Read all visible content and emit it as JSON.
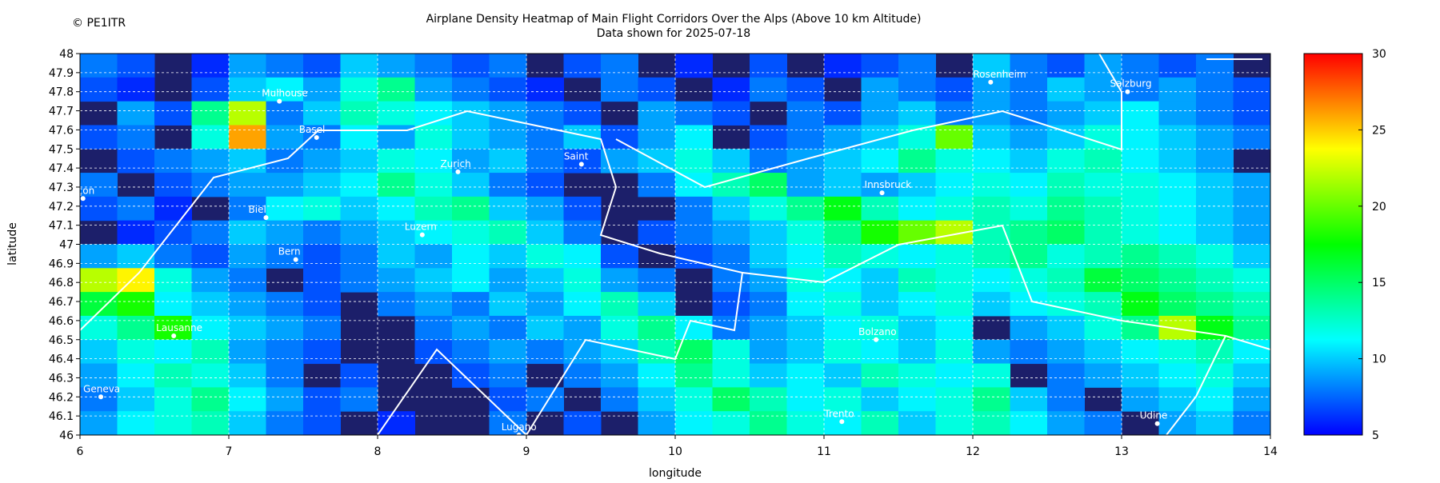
{
  "chart_data": {
    "type": "heatmap",
    "title": "Airplane Density Heatmap of Main Flight Corridors Over the Alps (Above 10 km Altitude)",
    "subtitle": "Data shown for 2025-07-18",
    "credit": "© PE1ITR",
    "x_label": "longitude",
    "y_label": "latitude",
    "xlim": [
      6,
      14
    ],
    "ylim": [
      46,
      48
    ],
    "zlim": [
      5,
      30
    ],
    "xticks": [
      6,
      7,
      8,
      9,
      10,
      11,
      12,
      13,
      14
    ],
    "yticks": [
      46,
      46.1,
      46.2,
      46.3,
      46.4,
      46.5,
      46.6,
      46.7,
      46.8,
      46.9,
      47,
      47.1,
      47.2,
      47.3,
      47.4,
      47.5,
      47.6,
      47.7,
      47.8,
      47.9,
      48
    ],
    "zticks": [
      5,
      10,
      15,
      20,
      25,
      30
    ],
    "grid": true,
    "background_color": "#1c1f6a",
    "colormap": [
      "#0000ff",
      "#00ffff",
      "#00ff00",
      "#ffff00",
      "#ff0000"
    ],
    "z": [
      [
        8,
        7,
        null,
        6,
        9,
        8,
        7,
        10,
        9,
        8,
        7,
        8,
        null,
        7,
        8,
        null,
        6,
        null,
        7,
        null,
        6,
        7,
        8,
        null,
        10,
        8,
        7,
        9,
        8,
        7,
        8,
        null
      ],
      [
        7,
        6,
        null,
        7,
        10,
        11,
        9,
        12,
        14,
        9,
        8,
        7,
        6,
        null,
        8,
        7,
        null,
        6,
        8,
        7,
        null,
        9,
        8,
        7,
        9,
        8,
        10,
        9,
        8,
        9,
        8,
        7
      ],
      [
        null,
        9,
        7,
        14,
        22,
        8,
        10,
        13,
        12,
        11,
        10,
        9,
        8,
        7,
        null,
        9,
        8,
        7,
        null,
        8,
        7,
        9,
        10,
        8,
        9,
        8,
        9,
        10,
        11,
        9,
        8,
        7
      ],
      [
        7,
        8,
        null,
        12,
        26,
        9,
        8,
        11,
        9,
        12,
        10,
        9,
        8,
        10,
        7,
        9,
        11,
        null,
        7,
        8,
        9,
        10,
        12,
        20,
        10,
        9,
        10,
        12,
        11,
        10,
        9,
        8
      ],
      [
        null,
        7,
        8,
        9,
        10,
        8,
        9,
        10,
        12,
        11,
        9,
        10,
        8,
        7,
        9,
        10,
        12,
        10,
        8,
        9,
        10,
        11,
        14,
        12,
        11,
        10,
        12,
        13,
        11,
        10,
        9,
        null
      ],
      [
        8,
        null,
        7,
        8,
        9,
        9,
        10,
        11,
        14,
        12,
        10,
        8,
        7,
        null,
        null,
        8,
        11,
        13,
        15,
        9,
        10,
        9,
        10,
        11,
        12,
        11,
        13,
        12,
        12,
        11,
        10,
        9
      ],
      [
        7,
        8,
        6,
        null,
        8,
        11,
        12,
        10,
        11,
        13,
        14,
        10,
        9,
        7,
        null,
        null,
        8,
        10,
        12,
        14,
        17,
        13,
        11,
        12,
        13,
        12,
        14,
        13,
        12,
        11,
        10,
        9
      ],
      [
        null,
        6,
        7,
        8,
        10,
        9,
        8,
        9,
        10,
        11,
        12,
        13,
        10,
        8,
        null,
        7,
        8,
        9,
        10,
        12,
        14,
        18,
        20,
        22,
        13,
        14,
        15,
        13,
        12,
        11,
        10,
        9
      ],
      [
        9,
        10,
        8,
        7,
        9,
        8,
        7,
        8,
        10,
        9,
        11,
        10,
        12,
        11,
        7,
        null,
        7,
        8,
        10,
        11,
        13,
        12,
        11,
        12,
        13,
        14,
        12,
        13,
        14,
        13,
        12,
        10
      ],
      [
        22,
        24,
        12,
        9,
        8,
        null,
        7,
        8,
        9,
        10,
        11,
        9,
        10,
        12,
        9,
        8,
        null,
        8,
        9,
        12,
        11,
        10,
        13,
        12,
        11,
        12,
        13,
        16,
        15,
        14,
        13,
        12
      ],
      [
        16,
        18,
        11,
        10,
        9,
        8,
        7,
        null,
        8,
        9,
        8,
        10,
        9,
        11,
        13,
        10,
        null,
        7,
        8,
        11,
        12,
        10,
        11,
        12,
        10,
        11,
        12,
        13,
        17,
        15,
        14,
        13
      ],
      [
        12,
        14,
        18,
        11,
        10,
        9,
        8,
        null,
        null,
        8,
        9,
        8,
        10,
        9,
        12,
        14,
        11,
        8,
        9,
        10,
        11,
        12,
        10,
        11,
        null,
        9,
        10,
        12,
        14,
        22,
        17,
        14
      ],
      [
        10,
        12,
        11,
        13,
        9,
        8,
        7,
        null,
        null,
        7,
        8,
        9,
        8,
        9,
        10,
        13,
        15,
        12,
        9,
        10,
        12,
        11,
        10,
        12,
        9,
        8,
        9,
        10,
        11,
        12,
        13,
        11
      ],
      [
        9,
        11,
        13,
        12,
        10,
        8,
        null,
        7,
        null,
        null,
        7,
        8,
        null,
        8,
        9,
        11,
        14,
        12,
        10,
        11,
        10,
        13,
        12,
        11,
        12,
        null,
        8,
        9,
        10,
        11,
        12,
        10
      ],
      [
        8,
        10,
        12,
        14,
        11,
        9,
        7,
        8,
        null,
        null,
        null,
        7,
        8,
        null,
        8,
        10,
        12,
        15,
        13,
        11,
        12,
        10,
        11,
        12,
        14,
        10,
        8,
        null,
        9,
        10,
        11,
        9
      ],
      [
        9,
        11,
        12,
        13,
        10,
        8,
        7,
        null,
        6,
        null,
        null,
        8,
        null,
        7,
        null,
        9,
        11,
        12,
        14,
        12,
        11,
        13,
        10,
        12,
        13,
        11,
        9,
        8,
        null,
        9,
        10,
        8
      ]
    ],
    "cities": [
      {
        "label": "Mulhouse",
        "x": 7.34,
        "y": 47.75
      },
      {
        "label": "Basel",
        "x": 7.59,
        "y": 47.56
      },
      {
        "label": "Zurich",
        "x": 8.54,
        "y": 47.38
      },
      {
        "label": "Saint",
        "x": 9.37,
        "y": 47.42
      },
      {
        "label": "ançon",
        "x": 6.02,
        "y": 47.24
      },
      {
        "label": "Biel",
        "x": 7.25,
        "y": 47.14
      },
      {
        "label": "Luzern",
        "x": 8.3,
        "y": 47.05
      },
      {
        "label": "Bern",
        "x": 7.45,
        "y": 46.92
      },
      {
        "label": "Lausanne",
        "x": 6.63,
        "y": 46.52
      },
      {
        "label": "Geneva",
        "x": 6.14,
        "y": 46.2
      },
      {
        "label": "Lugano",
        "x": 8.95,
        "y": 46.0
      },
      {
        "label": "Innsbruck",
        "x": 11.39,
        "y": 47.27
      },
      {
        "label": "Rosenheim",
        "x": 12.12,
        "y": 47.85
      },
      {
        "label": "Salzburg",
        "x": 13.04,
        "y": 47.8
      },
      {
        "label": "Bolzano",
        "x": 11.35,
        "y": 46.5
      },
      {
        "label": "Trento",
        "x": 11.12,
        "y": 46.07
      },
      {
        "label": "Udine",
        "x": 13.24,
        "y": 46.06
      }
    ]
  }
}
